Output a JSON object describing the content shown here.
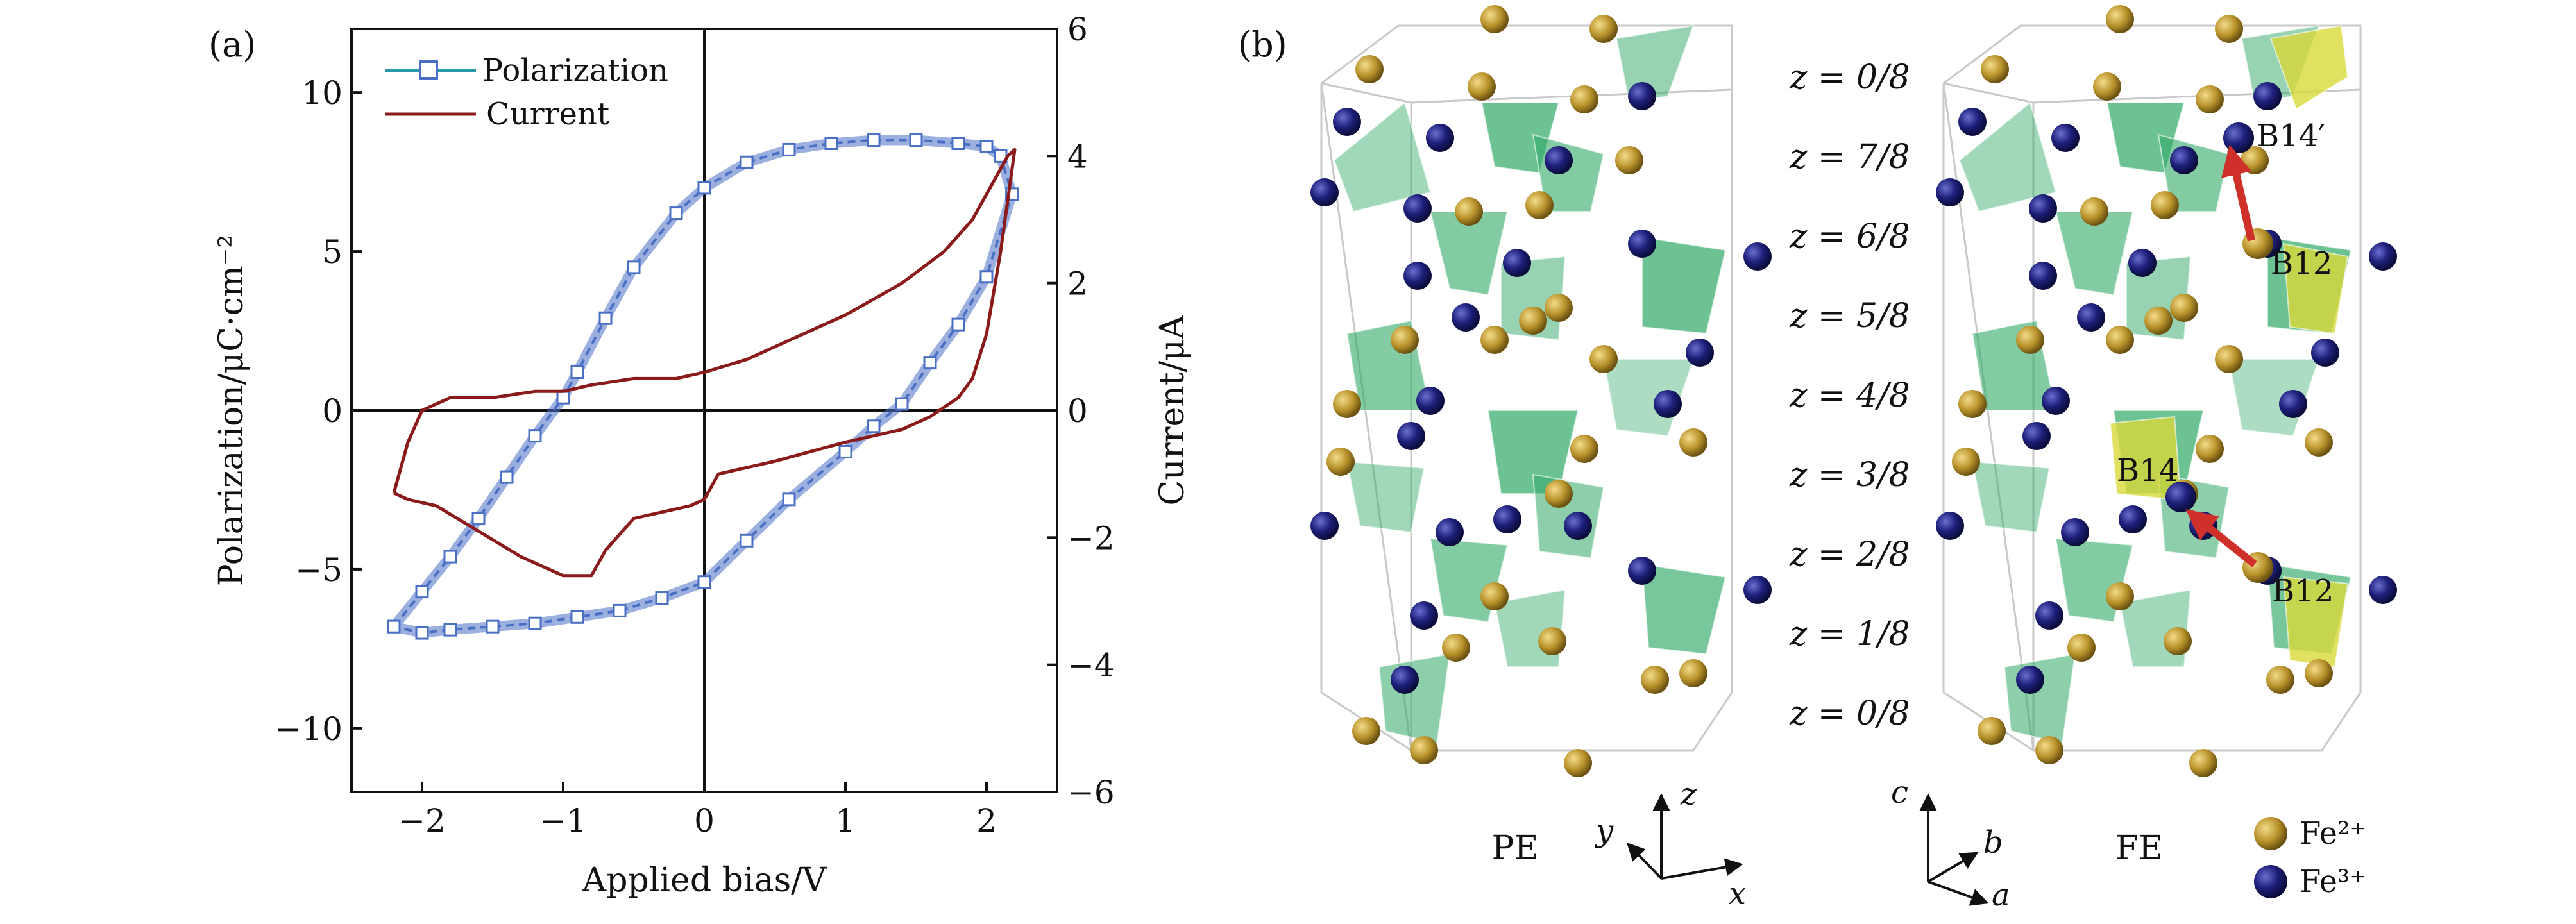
{
  "panel_a": {
    "label": "(a)",
    "xlabel": "Applied bias/V",
    "ylabel_left": "Polarization/μC·cm⁻²",
    "ylabel_right": "Current/μA",
    "legend": [
      "Polarization",
      "Current"
    ]
  },
  "panel_b": {
    "label": "(b)",
    "z_labels": [
      "z = 0/8",
      "z = 7/8",
      "z = 6/8",
      "z = 5/8",
      "z = 4/8",
      "z = 3/8",
      "z = 2/8",
      "z = 1/8",
      "z = 0/8"
    ],
    "pe_label": "PE",
    "fe_label": "FE",
    "pe_axes": [
      "z",
      "y",
      "x"
    ],
    "fe_axes": [
      "c",
      "b",
      "a"
    ],
    "legend": [
      {
        "label": "Fe²⁺",
        "color": "#b8922a"
      },
      {
        "label": "Fe³⁺",
        "color": "#1e1f7a"
      }
    ],
    "annotations": [
      "B14′",
      "B12",
      "B14",
      "B12"
    ]
  },
  "chart_data": {
    "type": "line",
    "xlim": [
      -2.5,
      2.5
    ],
    "ylim_left": [
      -12,
      12
    ],
    "ylim_right": [
      -6,
      6
    ],
    "x_ticks": [
      -2,
      -1,
      0,
      1,
      2
    ],
    "y_left_ticks": [
      -10,
      -5,
      0,
      5,
      10
    ],
    "y_right_ticks": [
      -6,
      -4,
      -2,
      0,
      2,
      4,
      6
    ],
    "grid": false,
    "legend_position": "top-left",
    "series": [
      {
        "name": "Polarization",
        "axis": "left",
        "color": "#4a6fc4",
        "x": [
          -2.2,
          -2.0,
          -1.8,
          -1.6,
          -1.4,
          -1.2,
          -1.0,
          -0.9,
          -0.7,
          -0.5,
          -0.2,
          0.0,
          0.3,
          0.6,
          0.9,
          1.2,
          1.5,
          1.8,
          2.0,
          2.1,
          2.18,
          2.0,
          1.8,
          1.6,
          1.4,
          1.2,
          1.0,
          0.6,
          0.3,
          0.0,
          -0.3,
          -0.6,
          -0.9,
          -1.2,
          -1.5,
          -1.8,
          -2.0,
          -2.2
        ],
        "y": [
          -6.8,
          -5.7,
          -4.6,
          -3.4,
          -2.1,
          -0.8,
          0.4,
          1.2,
          2.9,
          4.5,
          6.2,
          7.0,
          7.8,
          8.2,
          8.4,
          8.5,
          8.5,
          8.4,
          8.3,
          8.0,
          6.8,
          4.2,
          2.7,
          1.5,
          0.2,
          -0.5,
          -1.3,
          -2.8,
          -4.1,
          -5.4,
          -5.9,
          -6.3,
          -6.5,
          -6.7,
          -6.8,
          -6.9,
          -7.0,
          -6.8
        ]
      },
      {
        "name": "Current",
        "axis": "right",
        "color": "#8b1a1a",
        "x": [
          -2.2,
          -2.1,
          -2.0,
          -1.8,
          -1.5,
          -1.2,
          -1.0,
          -0.8,
          -0.5,
          -0.2,
          0.0,
          0.3,
          0.6,
          1.0,
          1.4,
          1.7,
          1.9,
          2.05,
          2.15,
          2.2,
          2.1,
          2.0,
          1.9,
          1.8,
          1.6,
          1.4,
          1.0,
          0.5,
          0.1,
          0.0,
          -0.1,
          -0.3,
          -0.5,
          -0.7,
          -0.8,
          -1.0,
          -1.3,
          -1.6,
          -1.9,
          -2.1,
          -2.2
        ],
        "y": [
          -1.3,
          -0.5,
          0.0,
          0.2,
          0.2,
          0.3,
          0.3,
          0.4,
          0.5,
          0.5,
          0.6,
          0.8,
          1.1,
          1.5,
          2.0,
          2.5,
          3.0,
          3.6,
          4.0,
          4.1,
          2.5,
          1.2,
          0.5,
          0.2,
          -0.1,
          -0.3,
          -0.5,
          -0.8,
          -1.0,
          -1.4,
          -1.5,
          -1.6,
          -1.7,
          -2.2,
          -2.6,
          -2.6,
          -2.3,
          -1.9,
          -1.5,
          -1.4,
          -1.3
        ]
      }
    ]
  }
}
